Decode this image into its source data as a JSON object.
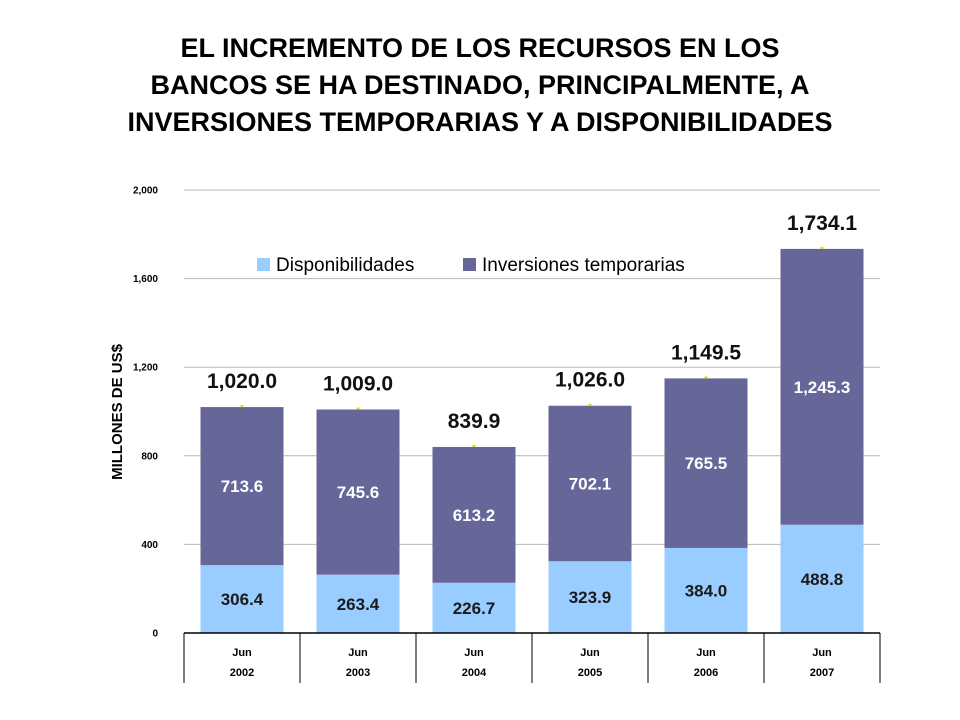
{
  "title_lines": [
    "EL INCREMENTO DE LOS RECURSOS EN LOS",
    "BANCOS SE HA DESTINADO, PRINCIPALMENTE, A",
    "INVERSIONES TEMPORARIAS Y A DISPONIBILIDADES"
  ],
  "chart_data": {
    "type": "bar",
    "stacked": true,
    "title": "",
    "ylabel": "MILLONES DE US$",
    "xlabel": "",
    "ylim": [
      0,
      2000
    ],
    "yticks": [
      0,
      400,
      800,
      1200,
      1600,
      2000
    ],
    "ytick_labels": [
      "0",
      "400",
      "800",
      "1,200",
      "1,600",
      "2,000"
    ],
    "grid": true,
    "legend_position": "top",
    "categories": [
      [
        "Jun",
        "2002"
      ],
      [
        "Jun",
        "2003"
      ],
      [
        "Jun",
        "2004"
      ],
      [
        "Jun",
        "2005"
      ],
      [
        "Jun",
        "2006"
      ],
      [
        "Jun",
        "2007"
      ]
    ],
    "series": [
      {
        "name": "Disponibilidades",
        "color": "#99ccff",
        "values": [
          306.4,
          263.4,
          226.7,
          323.9,
          384.0,
          488.8
        ],
        "labels": [
          "306.4",
          "263.4",
          "226.7",
          "323.9",
          "384.0",
          "488.8"
        ]
      },
      {
        "name": "Inversiones temporarias",
        "color": "#666699",
        "values": [
          713.6,
          745.6,
          613.2,
          702.1,
          765.5,
          1245.3
        ],
        "labels": [
          "713.6",
          "745.6",
          "613.2",
          "702.1",
          "765.5",
          "1,245.3"
        ]
      }
    ],
    "totals": [
      1020.0,
      1009.0,
      839.9,
      1026.0,
      1149.5,
      1734.1
    ],
    "total_labels": [
      "1,020.0",
      "1,009.0",
      "839.9",
      "1,026.0",
      "1,149.5",
      "1,734.1"
    ],
    "colors": {
      "grid": "#b8b8b8",
      "axis": "#000000",
      "marker": "#e6d800"
    }
  }
}
